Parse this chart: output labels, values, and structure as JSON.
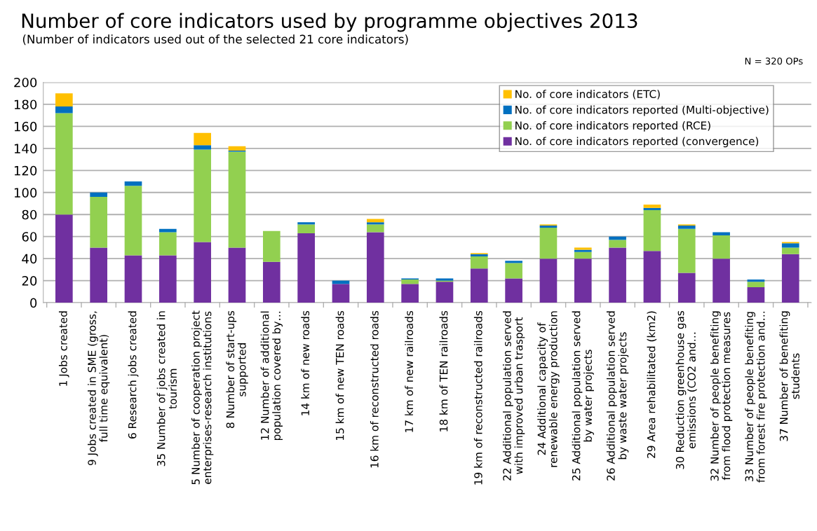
{
  "chart_data": {
    "type": "bar",
    "stacked": true,
    "title": "Number of core indicators used by programme objectives 2013",
    "subtitle": "(Number of indicators used out of the selected 21 core indicators)",
    "annotations": [
      "N = 320 OPs"
    ],
    "categories": [
      "1 Jobs created",
      "9 Jobs created in SME (gross,\nfull time equivalent)",
      "6 Research jobs created",
      "35 Number of jobs created in\ntourism",
      "5 Number of cooperation project\nenterprises-research institutions",
      "8 Number of start-ups\nsupported",
      "12 Number of additional\npopulation covered by…",
      "14 km of new roads",
      "15 km of new TEN roads",
      "16 km of reconstructed roads",
      "17 km of new railroads",
      "18 km of TEN railroads",
      "19 km of reconstructed railroads",
      "22 Additional population served\nwith improved urban trasport",
      "24 Additional capacity of\nrenewable energy production",
      "25 Additional population served\nby water projects",
      "26 Additional population served\nby waste water projects",
      "29 Area rehabilitated (km2)",
      "30 Reduction greenhouse gas\nemissions (CO2 and…",
      "32 Number of people benefiting\nfrom flood protection measures",
      "33 Number of people benefiting\nfrom forest fire protection and…",
      "37 Number of benefiting\nstudents"
    ],
    "series": [
      {
        "name": "No. of core indicators reported (convergence)",
        "color": "#7030a0",
        "values": [
          80,
          50,
          43,
          43,
          55,
          50,
          37,
          63,
          17,
          64,
          17,
          19,
          31,
          22,
          40,
          40,
          50,
          47,
          27,
          40,
          14,
          44
        ]
      },
      {
        "name": "No. of core indicators reported (RCE)",
        "color": "#92d050",
        "values": [
          92,
          46,
          63,
          21,
          84,
          87,
          28,
          8,
          0,
          7,
          4,
          1,
          11,
          14,
          28,
          6,
          7,
          37,
          40,
          21,
          5,
          6
        ]
      },
      {
        "name": "No. of core indicators reported (Multi-objective)",
        "color": "#0070c0",
        "values": [
          6,
          4,
          4,
          3,
          4,
          1,
          0,
          2,
          3,
          2,
          1,
          2,
          2,
          2,
          2,
          2,
          3,
          2,
          3,
          3,
          2,
          4
        ]
      },
      {
        "name": "No. of core indicators (ETC)",
        "color": "#ffc000",
        "values": [
          12,
          0,
          0,
          0,
          11,
          4,
          0,
          0,
          0,
          3,
          0,
          0,
          1,
          0,
          1,
          2,
          0,
          3,
          1,
          0,
          0,
          1
        ]
      }
    ],
    "ylim": [
      0,
      200
    ],
    "yticks": [
      0,
      20,
      40,
      60,
      80,
      100,
      120,
      140,
      160,
      180,
      200
    ],
    "grid": "y",
    "legend": "top right"
  }
}
